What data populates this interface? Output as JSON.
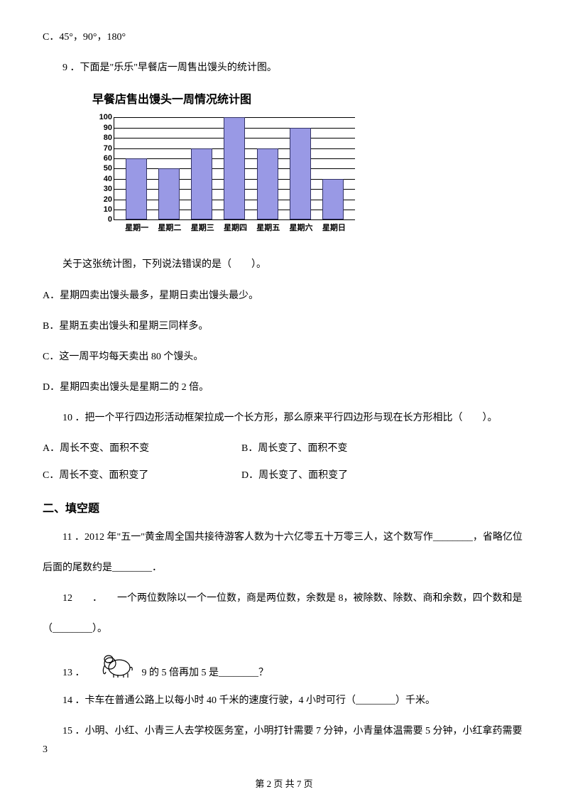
{
  "q8c": "C．45°，90°，180°",
  "q9": "9 ．下面是\"乐乐\"早餐店一周售出馒头的统计图。",
  "chart": {
    "type": "bar",
    "title": "早餐店售出馒头一周情况统计图",
    "categories": [
      "星期一",
      "星期二",
      "星期三",
      "星期四",
      "星期五",
      "星期六",
      "星期日"
    ],
    "values": [
      60,
      50,
      70,
      100,
      70,
      90,
      40
    ],
    "ymax": 100,
    "ytick_step": 10,
    "yticks": [
      "100",
      "90",
      "80",
      "70",
      "60",
      "50",
      "40",
      "30",
      "20",
      "10",
      "0"
    ],
    "bar_color": "#9999e5",
    "bar_border": "#333366",
    "grid_color": "#000000",
    "background": "#ffffff"
  },
  "q9_prompt": "关于这张统计图，下列说法错误的是（　　）。",
  "q9_a": "A．星期四卖出馒头最多，星期日卖出馒头最少。",
  "q9_b": "B．星期五卖出馒头和星期三同样多。",
  "q9_c": "C．这一周平均每天卖出 80 个馒头。",
  "q9_d": "D．星期四卖出馒头是星期二的 2 倍。",
  "q10": "10 ．把一个平行四边形活动框架拉成一个长方形，那么原来平行四边形与现在长方形相比（　　）。",
  "q10_a": "A．周长不变、面积不变",
  "q10_b": "B．周长变了、面积不变",
  "q10_c": "C．周长不变、面积变了",
  "q10_d": "D．周长变了、面积变了",
  "section2": "二、填空题",
  "q11_a": "11 ．2012 年\"五一\"黄金周全国共接待游客人数为十六亿零五十万零三人，这个数写作________，省略亿位",
  "q11_b": "后面的尾数约是________．",
  "q12_a": "12　　．　　一个两位数除以一个一位数，商是两位数，余数是 8，被除数、除数、商和余数，四个数和是",
  "q12_b": "（________）。",
  "q13_label": "13 ．",
  "q13_text": "9 的 5 倍再加 5 是________？",
  "q14": "14 ．卡车在普通公路上以每小时 40 千米的速度行驶，4 小时可行（________）千米。",
  "q15": "15 ．小明、小红、小青三人去学校医务室，小明打针需要 7 分钟，小青量体温需要 5 分钟，小红拿药需要 3",
  "footer": "第 2 页 共 7 页"
}
